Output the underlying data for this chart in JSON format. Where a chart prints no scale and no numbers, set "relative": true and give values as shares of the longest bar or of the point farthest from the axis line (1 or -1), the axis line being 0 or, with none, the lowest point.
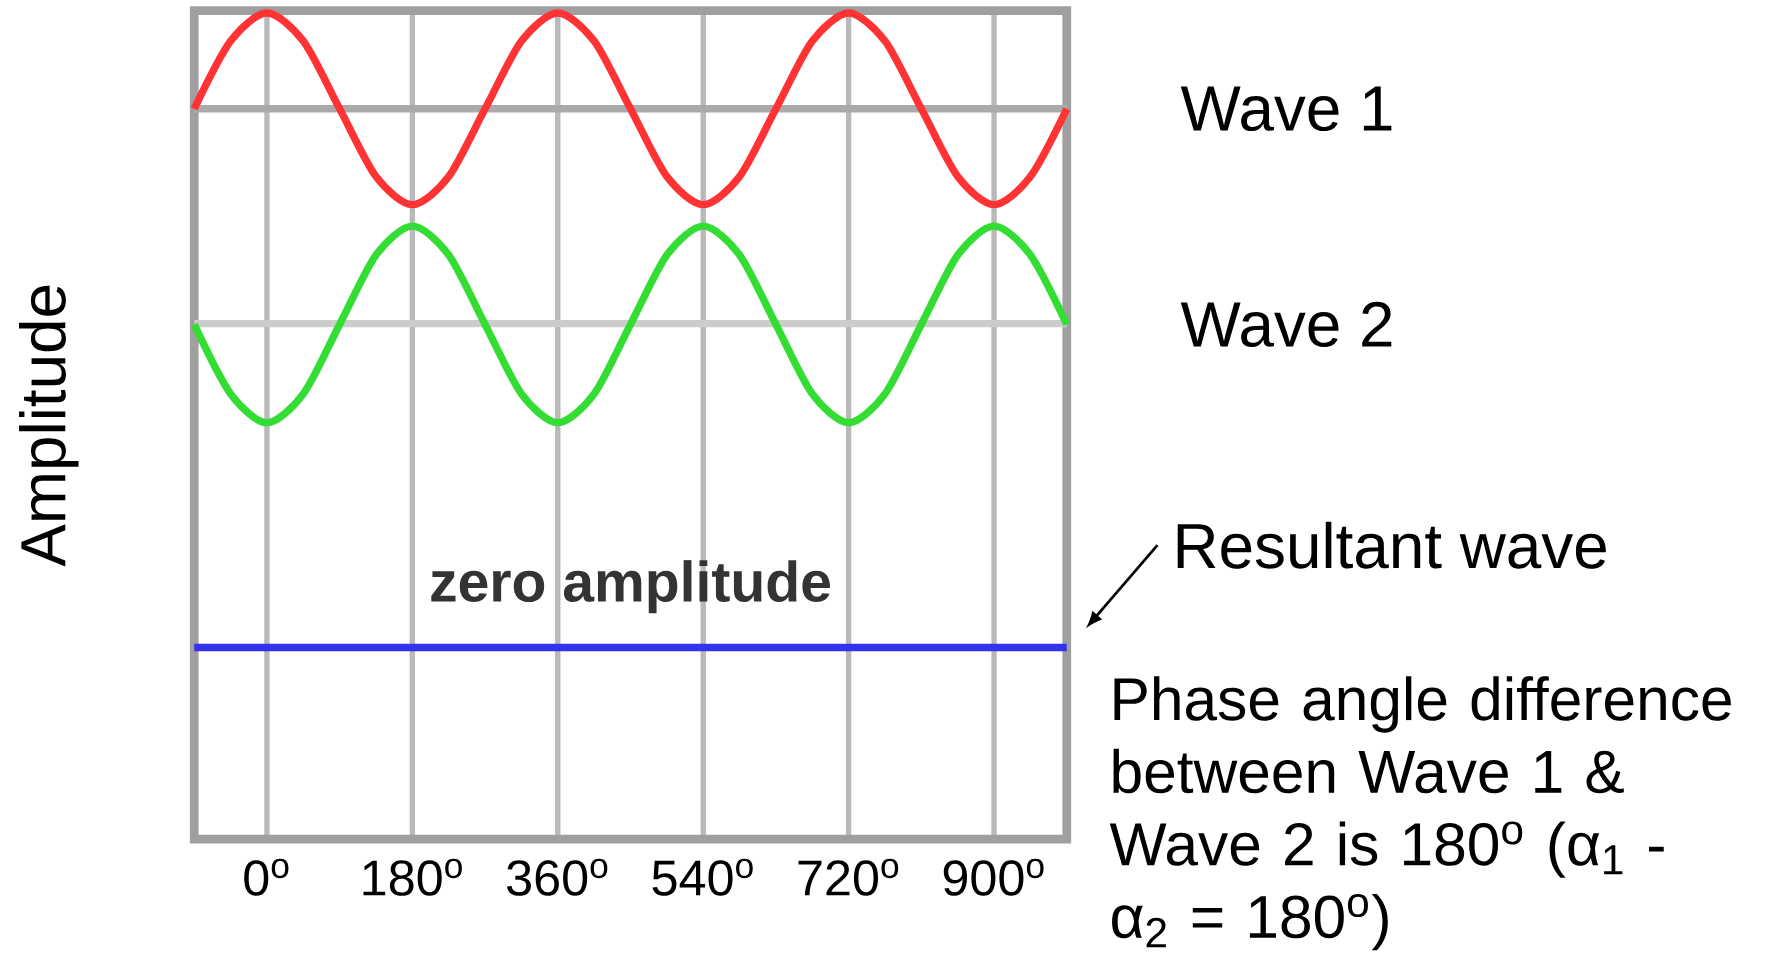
{
  "chart_data": {
    "type": "line",
    "relative": true,
    "ylabel": "Amplitude",
    "xlim": [
      -90,
      990
    ],
    "xticks": [
      {
        "value": 0,
        "label": "0$^{o}$"
      },
      {
        "value": 180,
        "label": "180$^{o}$"
      },
      {
        "value": 360,
        "label": "360$^{o}$"
      },
      {
        "value": 540,
        "label": "540$^{o}$"
      },
      {
        "value": 720,
        "label": "720$^{o}$"
      },
      {
        "value": 900,
        "label": "900$^{o}$"
      }
    ],
    "x": [
      -90,
      -45,
      0,
      45,
      90,
      135,
      180,
      225,
      270,
      315,
      360,
      405,
      450,
      495,
      540,
      585,
      630,
      675,
      720,
      765,
      810,
      855,
      900,
      945,
      990
    ],
    "series": [
      {
        "name": "Wave 1",
        "color": "#ff3333",
        "values": [
          0.884,
          0.966,
          1.0,
          0.966,
          0.884,
          0.802,
          0.768,
          0.802,
          0.884,
          0.966,
          1.0,
          0.966,
          0.884,
          0.802,
          0.768,
          0.802,
          0.884,
          0.966,
          1.0,
          0.966,
          0.884,
          0.802,
          0.768,
          0.802,
          0.884
        ]
      },
      {
        "name": "Wave 2",
        "color": "#33dd33",
        "values": [
          0.623,
          0.539,
          0.504,
          0.539,
          0.623,
          0.707,
          0.742,
          0.707,
          0.623,
          0.539,
          0.504,
          0.539,
          0.623,
          0.707,
          0.742,
          0.707,
          0.623,
          0.539,
          0.504,
          0.539,
          0.623,
          0.707,
          0.742,
          0.707,
          0.623
        ]
      },
      {
        "name": "Resultant wave",
        "color": "#3333ee",
        "x": [
          -90,
          990
        ],
        "values": [
          0.232,
          0.232
        ]
      }
    ],
    "ref_lines": [
      {
        "axis": "y",
        "value": 0.884,
        "color": "#aaaaaa"
      },
      {
        "axis": "y",
        "value": 0.624,
        "color": "#cccccc"
      }
    ],
    "annotations": [
      {
        "text": "zero amplitude",
        "x": 450,
        "y": 0.232
      },
      "Phase angle difference between Wave 1 & Wave 2 is 180$^{o}$ (α$_{1}$ - α$_{2}$ = 180$^{o}$)"
    ],
    "grid": "x",
    "marker": "none",
    "line_style": "solid"
  }
}
